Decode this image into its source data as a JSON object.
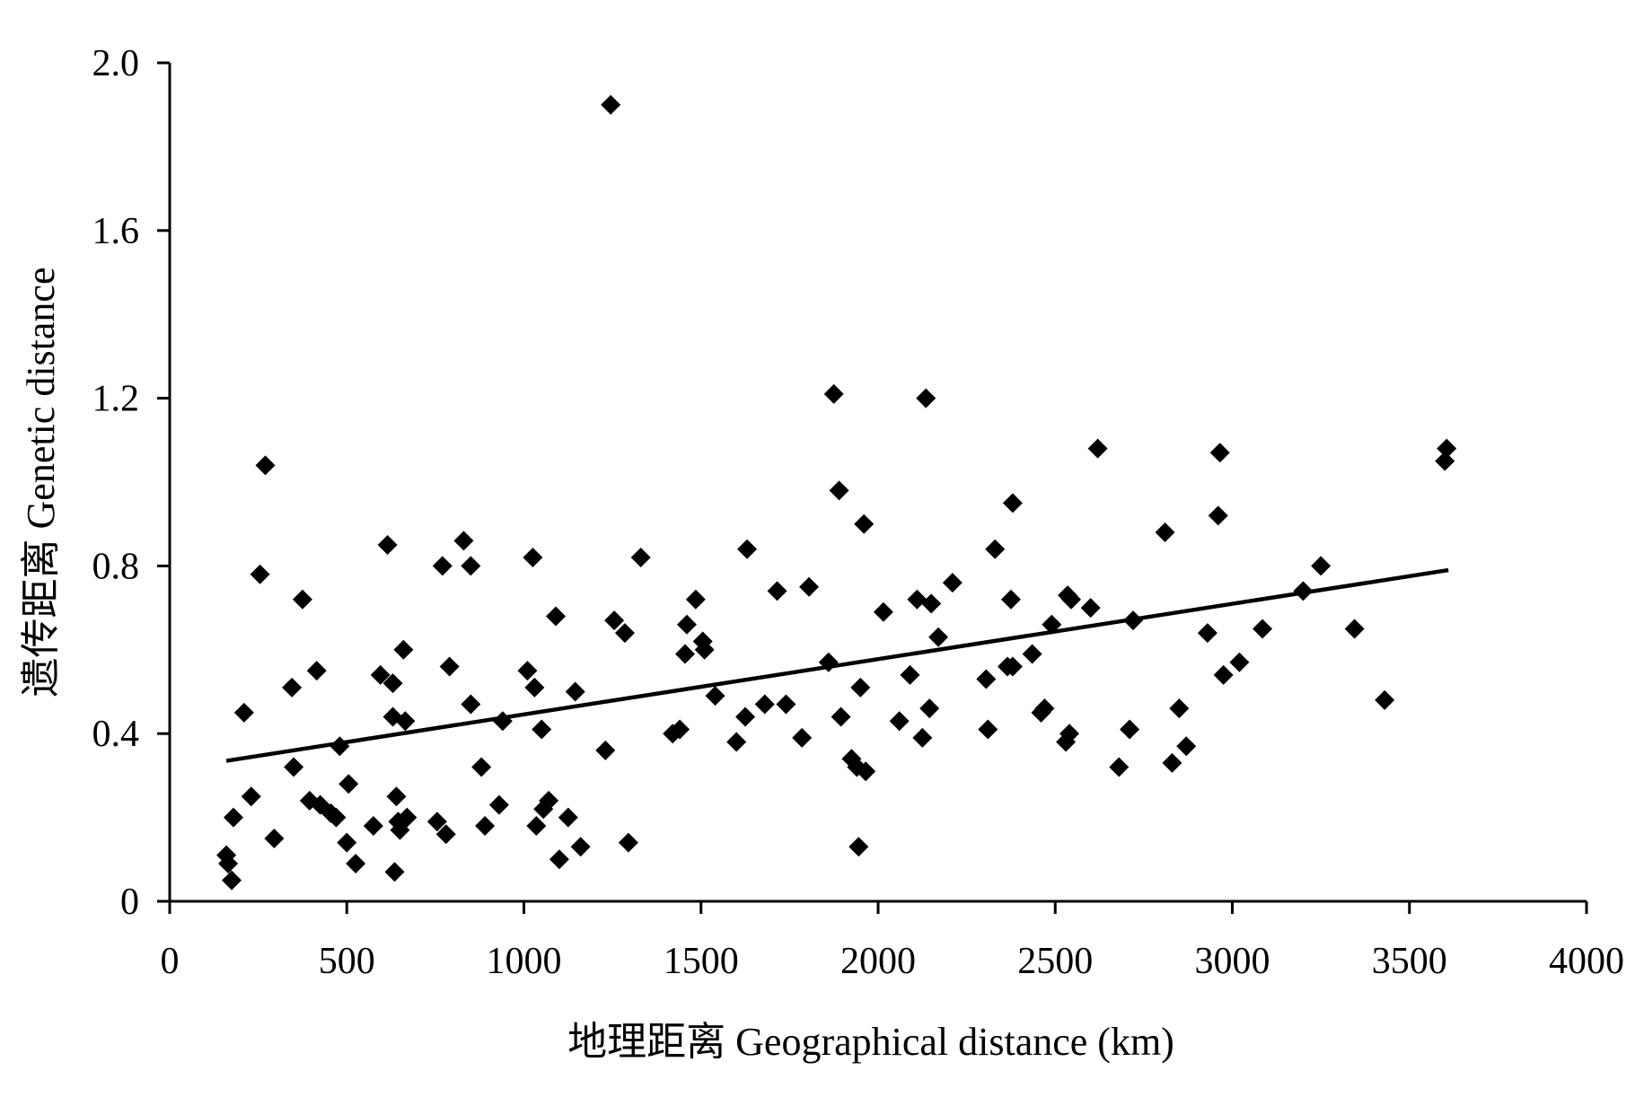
{
  "chart_data": {
    "type": "scatter",
    "xlabel": "地理距离 Geographical distance (km)",
    "ylabel": "遗传距离 Genetic distance",
    "xlim": [
      0,
      4000
    ],
    "ylim": [
      0,
      2.0
    ],
    "x_ticks": [
      "0",
      "500",
      "1000",
      "1500",
      "2000",
      "2500",
      "3000",
      "3500",
      "4000"
    ],
    "y_ticks": [
      "0",
      "0.4",
      "0.8",
      "1.2",
      "1.6",
      "2.0"
    ],
    "grid": false,
    "legend": "none",
    "marker": "diamond",
    "marker_color": "#000000",
    "trendline": {
      "x": [
        160,
        3610
      ],
      "y": [
        0.335,
        0.79
      ]
    },
    "points": [
      [
        160,
        0.11
      ],
      [
        165,
        0.09
      ],
      [
        175,
        0.05
      ],
      [
        180,
        0.2
      ],
      [
        210,
        0.45
      ],
      [
        230,
        0.25
      ],
      [
        255,
        0.78
      ],
      [
        270,
        1.04
      ],
      [
        295,
        0.15
      ],
      [
        345,
        0.51
      ],
      [
        350,
        0.32
      ],
      [
        375,
        0.72
      ],
      [
        395,
        0.24
      ],
      [
        415,
        0.55
      ],
      [
        425,
        0.23
      ],
      [
        455,
        0.21
      ],
      [
        470,
        0.2
      ],
      [
        480,
        0.37
      ],
      [
        500,
        0.14
      ],
      [
        505,
        0.28
      ],
      [
        525,
        0.09
      ],
      [
        575,
        0.18
      ],
      [
        595,
        0.54
      ],
      [
        615,
        0.85
      ],
      [
        630,
        0.52
      ],
      [
        630,
        0.44
      ],
      [
        635,
        0.07
      ],
      [
        640,
        0.25
      ],
      [
        645,
        0.19
      ],
      [
        650,
        0.17
      ],
      [
        660,
        0.6
      ],
      [
        665,
        0.43
      ],
      [
        670,
        0.2
      ],
      [
        755,
        0.19
      ],
      [
        770,
        0.8
      ],
      [
        780,
        0.16
      ],
      [
        790,
        0.56
      ],
      [
        830,
        0.86
      ],
      [
        850,
        0.8
      ],
      [
        850,
        0.47
      ],
      [
        880,
        0.32
      ],
      [
        890,
        0.18
      ],
      [
        930,
        0.23
      ],
      [
        940,
        0.43
      ],
      [
        1010,
        0.55
      ],
      [
        1025,
        0.82
      ],
      [
        1030,
        0.51
      ],
      [
        1035,
        0.18
      ],
      [
        1050,
        0.41
      ],
      [
        1055,
        0.22
      ],
      [
        1070,
        0.24
      ],
      [
        1090,
        0.68
      ],
      [
        1100,
        0.1
      ],
      [
        1125,
        0.2
      ],
      [
        1145,
        0.5
      ],
      [
        1160,
        0.13
      ],
      [
        1230,
        0.36
      ],
      [
        1245,
        1.9
      ],
      [
        1255,
        0.67
      ],
      [
        1285,
        0.64
      ],
      [
        1295,
        0.14
      ],
      [
        1330,
        0.82
      ],
      [
        1420,
        0.4
      ],
      [
        1440,
        0.41
      ],
      [
        1455,
        0.59
      ],
      [
        1460,
        0.66
      ],
      [
        1485,
        0.72
      ],
      [
        1505,
        0.62
      ],
      [
        1510,
        0.6
      ],
      [
        1540,
        0.49
      ],
      [
        1600,
        0.38
      ],
      [
        1625,
        0.44
      ],
      [
        1630,
        0.84
      ],
      [
        1680,
        0.47
      ],
      [
        1715,
        0.74
      ],
      [
        1740,
        0.47
      ],
      [
        1785,
        0.39
      ],
      [
        1805,
        0.75
      ],
      [
        1860,
        0.57
      ],
      [
        1875,
        1.21
      ],
      [
        1890,
        0.98
      ],
      [
        1895,
        0.44
      ],
      [
        1925,
        0.34
      ],
      [
        1940,
        0.32
      ],
      [
        1945,
        0.13
      ],
      [
        1950,
        0.51
      ],
      [
        1960,
        0.9
      ],
      [
        1965,
        0.31
      ],
      [
        2015,
        0.69
      ],
      [
        2060,
        0.43
      ],
      [
        2090,
        0.54
      ],
      [
        2110,
        0.72
      ],
      [
        2125,
        0.39
      ],
      [
        2135,
        1.2
      ],
      [
        2145,
        0.46
      ],
      [
        2150,
        0.71
      ],
      [
        2170,
        0.63
      ],
      [
        2210,
        0.76
      ],
      [
        2305,
        0.53
      ],
      [
        2310,
        0.41
      ],
      [
        2330,
        0.84
      ],
      [
        2365,
        0.56
      ],
      [
        2375,
        0.72
      ],
      [
        2380,
        0.95
      ],
      [
        2380,
        0.56
      ],
      [
        2435,
        0.59
      ],
      [
        2460,
        0.45
      ],
      [
        2470,
        0.46
      ],
      [
        2490,
        0.66
      ],
      [
        2530,
        0.38
      ],
      [
        2535,
        0.73
      ],
      [
        2540,
        0.4
      ],
      [
        2545,
        0.72
      ],
      [
        2600,
        0.7
      ],
      [
        2620,
        1.08
      ],
      [
        2680,
        0.32
      ],
      [
        2710,
        0.41
      ],
      [
        2720,
        0.67
      ],
      [
        2810,
        0.88
      ],
      [
        2830,
        0.33
      ],
      [
        2850,
        0.46
      ],
      [
        2870,
        0.37
      ],
      [
        2930,
        0.64
      ],
      [
        2960,
        0.92
      ],
      [
        2965,
        1.07
      ],
      [
        2975,
        0.54
      ],
      [
        3020,
        0.57
      ],
      [
        3085,
        0.65
      ],
      [
        3200,
        0.74
      ],
      [
        3250,
        0.8
      ],
      [
        3345,
        0.65
      ],
      [
        3430,
        0.48
      ],
      [
        3600,
        1.05
      ],
      [
        3605,
        1.08
      ]
    ]
  }
}
